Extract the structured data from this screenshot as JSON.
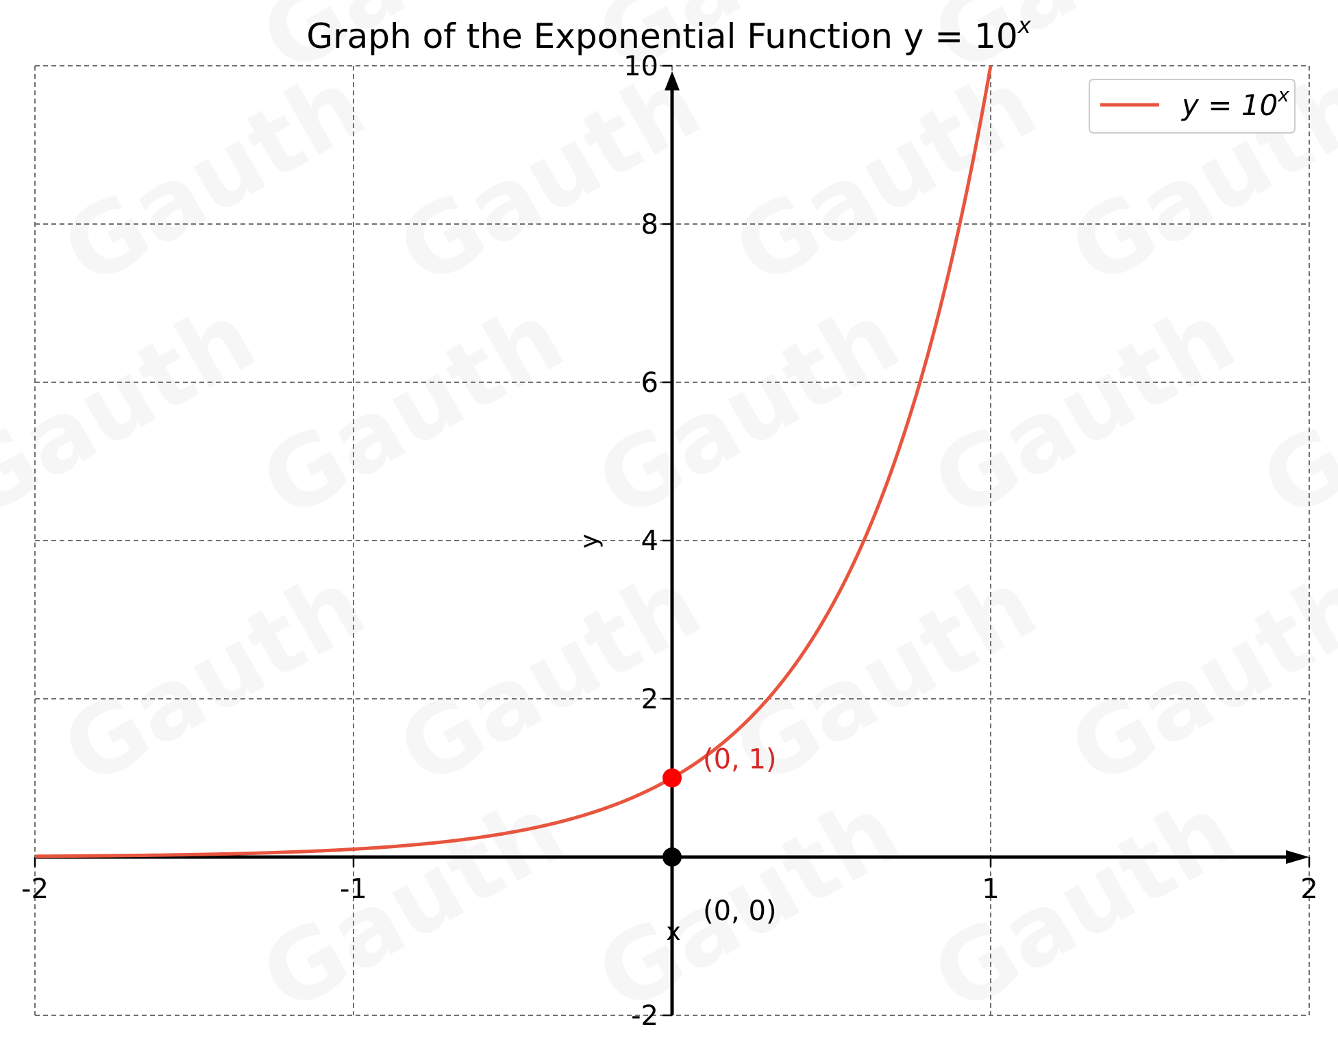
{
  "chart_data": {
    "type": "line",
    "title": "Graph of the Exponential Function y = 10",
    "title_superscript": "x",
    "xlabel": "x",
    "ylabel": "y",
    "xlim": [
      -2,
      2
    ],
    "ylim": [
      -2,
      10
    ],
    "x_ticks": [
      -2,
      -1,
      1,
      2
    ],
    "y_ticks": [
      -2,
      2,
      4,
      6,
      8,
      10
    ],
    "grid": true,
    "grid_style": "dashed",
    "legend_position": "top-right",
    "series": [
      {
        "name": "y = 10",
        "name_superscript": "x",
        "function": "10^x",
        "color": "#e8553e",
        "x": [
          -2,
          -1.5,
          -1,
          -0.5,
          0,
          0.25,
          0.5,
          0.75,
          1
        ],
        "y": [
          0.01,
          0.0316,
          0.1,
          0.316,
          1,
          1.778,
          3.162,
          5.623,
          10
        ]
      }
    ],
    "points": [
      {
        "label": "(0, 1)",
        "x": 0,
        "y": 1,
        "color": "#ff0000",
        "label_color": "#d62728"
      },
      {
        "label": "(0, 0)",
        "x": 0,
        "y": 0,
        "color": "#000000",
        "label_color": "#000000"
      }
    ],
    "watermark": "Gauth"
  }
}
